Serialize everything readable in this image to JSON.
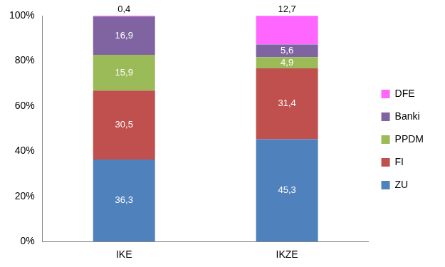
{
  "chart_data": {
    "type": "bar",
    "stacked": true,
    "data_labels": true,
    "grid": false,
    "legend": "right",
    "categories": [
      "IKE",
      "IKZE"
    ],
    "series": [
      {
        "name": "ZU",
        "color": "#4f81bd",
        "values": [
          36.3,
          45.3
        ],
        "value_labels": [
          "36,3",
          "45,3"
        ]
      },
      {
        "name": "FI",
        "color": "#c0504d",
        "values": [
          30.5,
          31.4
        ],
        "value_labels": [
          "30,5",
          "31,4"
        ]
      },
      {
        "name": "PPDM",
        "color": "#9bbb59",
        "values": [
          15.9,
          4.9
        ],
        "value_labels": [
          "15,9",
          "4,9"
        ]
      },
      {
        "name": "Banki",
        "color": "#8064a2",
        "values": [
          16.9,
          5.6
        ],
        "value_labels": [
          "16,9",
          "5,6"
        ]
      },
      {
        "name": "DFE",
        "color": "#ff66ff",
        "values": [
          0.4,
          12.7
        ],
        "value_labels": [
          "0,4",
          "12,7"
        ]
      }
    ],
    "ylim": [
      0,
      100
    ],
    "yticks": [
      {
        "value": 0,
        "label": "0%"
      },
      {
        "value": 20,
        "label": "20%"
      },
      {
        "value": 40,
        "label": "40%"
      },
      {
        "value": 60,
        "label": "60%"
      },
      {
        "value": 80,
        "label": "80%"
      },
      {
        "value": 100,
        "label": "100%"
      }
    ]
  }
}
